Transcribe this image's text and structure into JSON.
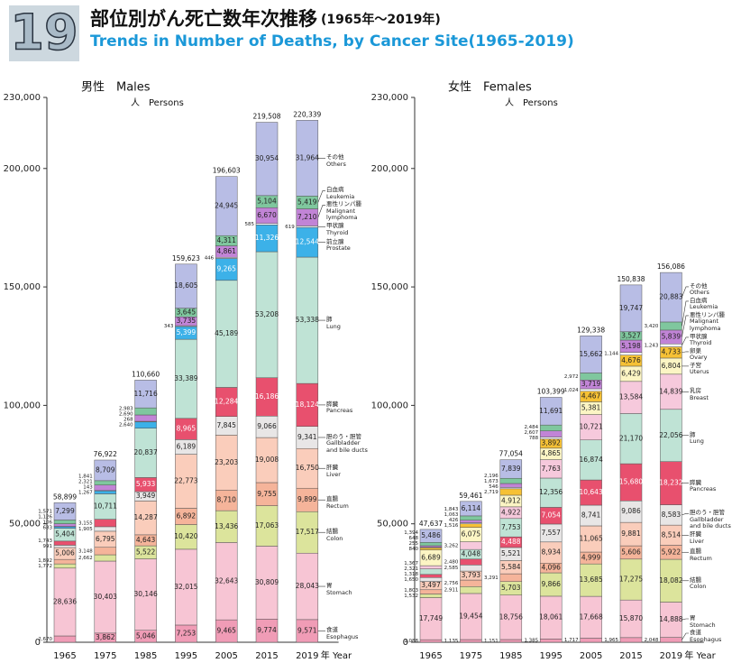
{
  "header": {
    "number": "19",
    "title_ja": "部位別がん死亡数年次推移",
    "title_years": "(1965年〜2019年)",
    "title_en": "Trends in Number of Deaths, by Cancer Site(1965-2019)"
  },
  "chart_data": [
    {
      "type": "stacked_bar",
      "title": "男性　Males",
      "unit_label": "人　Persons",
      "x_label": "年 Year",
      "categories": [
        "1965",
        "1975",
        "1985",
        "1995",
        "2005",
        "2015",
        "2019"
      ],
      "ylim": [
        0,
        230000
      ],
      "yticks": [
        0,
        {
          "value": 50000,
          "label": "50,000"
        },
        {
          "value": 100000,
          "label": "100,000"
        },
        {
          "value": 150000,
          "label": "150,000"
        },
        {
          "value": 200000,
          "label": "200,000"
        },
        {
          "value": 230000,
          "label": "230,000"
        }
      ],
      "total_labels": [
        "58,899",
        "76,922",
        "110,660",
        "159,623",
        "196,603",
        "219,508",
        "220,339"
      ],
      "series": [
        {
          "name_ja": "食道",
          "name": "Esophagus",
          "color": "#f09cb6",
          "values": [
            2670,
            3862,
            5046,
            7253,
            9465,
            9774,
            9571
          ],
          "value_labels": [
            "2,670",
            "3,862",
            "5,046",
            "7,253",
            "9,465",
            "9,774",
            "9,571"
          ]
        },
        {
          "name_ja": "胃",
          "name": "Stomach",
          "color": "#f7c5d4",
          "values": [
            28636,
            30403,
            30146,
            32015,
            32643,
            30809,
            28043
          ],
          "value_labels": [
            "28,636",
            "30,403",
            "30,146",
            "32,015",
            "32,643",
            "30,809",
            "28,043"
          ]
        },
        {
          "name_ja": "結腸",
          "name": "Colon",
          "color": "#dce49c",
          "values": [
            1772,
            2662,
            5522,
            10420,
            13436,
            17063,
            17517
          ],
          "value_labels": [
            "1,772",
            "2,662",
            "5,522",
            "10,420",
            "13,436",
            "17,063",
            "17,517"
          ]
        },
        {
          "name_ja": "直腸",
          "name": "Rectum",
          "color": "#f5b49a",
          "values": [
            1892,
            3148,
            4643,
            6892,
            8710,
            9755,
            9899
          ],
          "value_labels": [
            "1,892",
            "3,148",
            "4,643",
            "6,892",
            "8,710",
            "9,755",
            "9,899"
          ]
        },
        {
          "name_ja": "肝臓",
          "name": "Liver",
          "color": "#facdbb",
          "values": [
            5006,
            6795,
            14287,
            22773,
            23203,
            19008,
            16750
          ],
          "value_labels": [
            "5,006",
            "6,795",
            "14,287",
            "22,773",
            "23,203",
            "19,008",
            "16,750"
          ]
        },
        {
          "name_ja": "胆のう・胆管",
          "name": "Gallbladder and bile ducts",
          "color": "#e8e6e6",
          "values": [
            991,
            1905,
            3949,
            6189,
            7845,
            9066,
            9341
          ],
          "value_labels": [
            "991",
            "1,905",
            "3,949",
            "6,189",
            "7,845",
            "9,066",
            "9,341"
          ]
        },
        {
          "name_ja": "膵臓",
          "name": "Pancreas",
          "color": "#e8506e",
          "values": [
            1743,
            3155,
            5933,
            8965,
            12284,
            16186,
            18124
          ],
          "value_labels": [
            "1,743",
            "3,155",
            "5,933",
            "8,965",
            "12,284",
            "16,186",
            "18,124"
          ]
        },
        {
          "name_ja": "肺",
          "name": "Lung",
          "color": "#bfe3d5",
          "values": [
            5404,
            10711,
            20837,
            33389,
            45189,
            53208,
            53338
          ],
          "value_labels": [
            "5,404",
            "10,711",
            "20,837",
            "33,389",
            "45,189",
            "53,208",
            "53,338"
          ]
        },
        {
          "name_ja": "前立腺",
          "name": "Prostate",
          "color": "#3cb1e8",
          "values": [
            683,
            1267,
            2640,
            5399,
            9265,
            11326,
            12544
          ],
          "value_labels": [
            "683",
            "1,267",
            "2,640",
            "5,399",
            "9,265",
            "11,326",
            "12,544"
          ]
        },
        {
          "name_ja": "甲状腺",
          "name": "Thyroid",
          "color": "#ffffff",
          "values": [
            106,
            143,
            268,
            343,
            446,
            585,
            619
          ],
          "value_labels": [
            "106",
            "143",
            "268",
            "343",
            "446",
            "585",
            "619"
          ]
        },
        {
          "name_ja": "悪性リンパ腫",
          "name": "Malignant lymphoma",
          "color": "#c184d6",
          "values": [
            1126,
            2321,
            2690,
            3735,
            4861,
            6670,
            7210
          ],
          "value_labels": [
            "1,126",
            "2,321",
            "2,690",
            "3,735",
            "4,861",
            "6,670",
            "7,210"
          ]
        },
        {
          "name_ja": "白血病",
          "name": "Leukemia",
          "color": "#7fc79e",
          "values": [
            1571,
            1841,
            2983,
            3645,
            4311,
            5104,
            5419
          ],
          "value_labels": [
            "1,571",
            "1,841",
            "2,983",
            "3,645",
            "4,311",
            "5,104",
            "5,419"
          ]
        },
        {
          "name_ja": "その他",
          "name": "Others",
          "color": "#b8bde5",
          "values": [
            7299,
            8709,
            11716,
            18605,
            24945,
            30954,
            31964
          ],
          "value_labels": [
            "7,299",
            "8,709",
            "11,716",
            "18,605",
            "24,945",
            "30,954",
            "31,964"
          ]
        }
      ]
    },
    {
      "type": "stacked_bar",
      "title": "女性　Females",
      "unit_label": "人　Persons",
      "x_label": "年 Year",
      "categories": [
        "1965",
        "1975",
        "1985",
        "1995",
        "2005",
        "2015",
        "2019"
      ],
      "ylim": [
        0,
        230000
      ],
      "yticks": [
        0,
        {
          "value": 50000,
          "label": "50,000"
        },
        {
          "value": 100000,
          "label": "100,000"
        },
        {
          "value": 150000,
          "label": "150,000"
        },
        {
          "value": 200000,
          "label": "200,000"
        },
        {
          "value": 230000,
          "label": "230,000"
        }
      ],
      "total_labels": [
        "47,637",
        "59,461",
        "77,054",
        "103,399",
        "129,338",
        "150,838",
        "156,086"
      ],
      "series": [
        {
          "name_ja": "食道",
          "name": "Esophagus",
          "color": "#f09cb6",
          "values": [
            1088,
            1135,
            1151,
            1385,
            1717,
            1965,
            2048
          ],
          "value_labels": [
            "1,088",
            "1,135",
            "1,151",
            "1,385",
            "1,717",
            "1,965",
            "2,048"
          ]
        },
        {
          "name_ja": "胃",
          "name": "Stomach",
          "color": "#f7c5d4",
          "values": [
            17749,
            19454,
            18756,
            18061,
            17668,
            15870,
            14888
          ],
          "value_labels": [
            "17,749",
            "19,454",
            "18,756",
            "18,061",
            "17,668",
            "15,870",
            "14,888"
          ]
        },
        {
          "name_ja": "結腸",
          "name": "Colon",
          "color": "#dce49c",
          "values": [
            1532,
            2911,
            5703,
            9866,
            13685,
            17275,
            18082
          ],
          "value_labels": [
            "1,532",
            "2,911",
            "5,703",
            "9,866",
            "13,685",
            "17,275",
            "18,082"
          ]
        },
        {
          "name_ja": "直腸",
          "name": "Rectum",
          "color": "#f5b49a",
          "values": [
            1803,
            2756,
            3291,
            4096,
            4999,
            5606,
            5922
          ],
          "value_labels": [
            "1,803",
            "2,756",
            "3,291",
            "4,096",
            "4,999",
            "5,606",
            "5,922"
          ]
        },
        {
          "name_ja": "肝臓",
          "name": "Liver",
          "color": "#facdbb",
          "values": [
            3497,
            3793,
            5584,
            8934,
            11065,
            9881,
            8514
          ],
          "value_labels": [
            "3,497",
            "3,793",
            "5,584",
            "8,934",
            "11,065",
            "9,881",
            "8,514"
          ]
        },
        {
          "name_ja": "胆のう・胆管",
          "name": "Gallbladder and bile ducts",
          "color": "#e8e6e6",
          "values": [
            1650,
            2585,
            5521,
            7557,
            8741,
            9086,
            8583
          ],
          "value_labels": [
            "1,650",
            "2,585",
            "5,521",
            "7,557",
            "8,741",
            "9,086",
            "8,583"
          ]
        },
        {
          "name_ja": "膵臓",
          "name": "Pancreas",
          "color": "#e8506e",
          "values": [
            1318,
            2480,
            4488,
            7054,
            10643,
            15680,
            18232
          ],
          "value_labels": [
            "1,318",
            "2,480",
            "4,488",
            "7,054",
            "10,643",
            "15,680",
            "18,232"
          ]
        },
        {
          "name_ja": "肺",
          "name": "Lung",
          "color": "#bfe3d5",
          "values": [
            2321,
            4048,
            7753,
            12356,
            16874,
            21170,
            22056
          ],
          "value_labels": [
            "2,321",
            "4,048",
            "7,753",
            "12,356",
            "16,874",
            "21,170",
            "22,056"
          ]
        },
        {
          "name_ja": "乳房",
          "name": "Breast",
          "color": "#f6c9dc",
          "values": [
            1367,
            3262,
            4922,
            7763,
            10721,
            13584,
            14839
          ],
          "value_labels": [
            "1,367",
            "3,262",
            "4,922",
            "7,763",
            "10,721",
            "13,584",
            "14,839"
          ]
        },
        {
          "name_ja": "子宮",
          "name": "Uterus",
          "color": "#fcf5c4",
          "values": [
            6689,
            6075,
            4912,
            4865,
            5381,
            6429,
            6804
          ],
          "value_labels": [
            "6,689",
            "6,075",
            "4,912",
            "4,865",
            "5,381",
            "6,429",
            "6,804"
          ]
        },
        {
          "name_ja": "卵巣",
          "name": "Ovary",
          "color": "#f6c135",
          "values": [
            840,
            1516,
            2719,
            3892,
            4467,
            4676,
            4733
          ],
          "value_labels": [
            "840",
            "1,516",
            "2,719",
            "3,892",
            "4,467",
            "4,676",
            "4,733"
          ]
        },
        {
          "name_ja": "甲状腺",
          "name": "Thyroid",
          "color": "#ffffff",
          "values": [
            255,
            426,
            546,
            788,
            1024,
            1144,
            1243
          ],
          "value_labels": [
            "255",
            "426",
            "546",
            "788",
            "1,024",
            "1,144",
            "1,243"
          ]
        },
        {
          "name_ja": "悪性リンパ腫",
          "name": "Malignant lymphoma",
          "color": "#c184d6",
          "values": [
            648,
            1063,
            1673,
            2607,
            3719,
            5198,
            5839
          ],
          "value_labels": [
            "648",
            "1,063",
            "1,673",
            "2,607",
            "3,719",
            "5,198",
            "5,839"
          ]
        },
        {
          "name_ja": "白血病",
          "name": "Leukemia",
          "color": "#7fc79e",
          "values": [
            1394,
            1843,
            2196,
            2484,
            2972,
            3527,
            3420
          ],
          "value_labels": [
            "1,394",
            "1,843",
            "2,196",
            "2,484",
            "2,972",
            "3,527",
            "3,420"
          ]
        },
        {
          "name_ja": "その他",
          "name": "Others",
          "color": "#b8bde5",
          "values": [
            5486,
            6114,
            7839,
            11691,
            15662,
            19747,
            20883
          ],
          "value_labels": [
            "5,486",
            "6,114",
            "7,839",
            "11,691",
            "15,662",
            "19,747",
            "20,883"
          ]
        }
      ]
    }
  ]
}
